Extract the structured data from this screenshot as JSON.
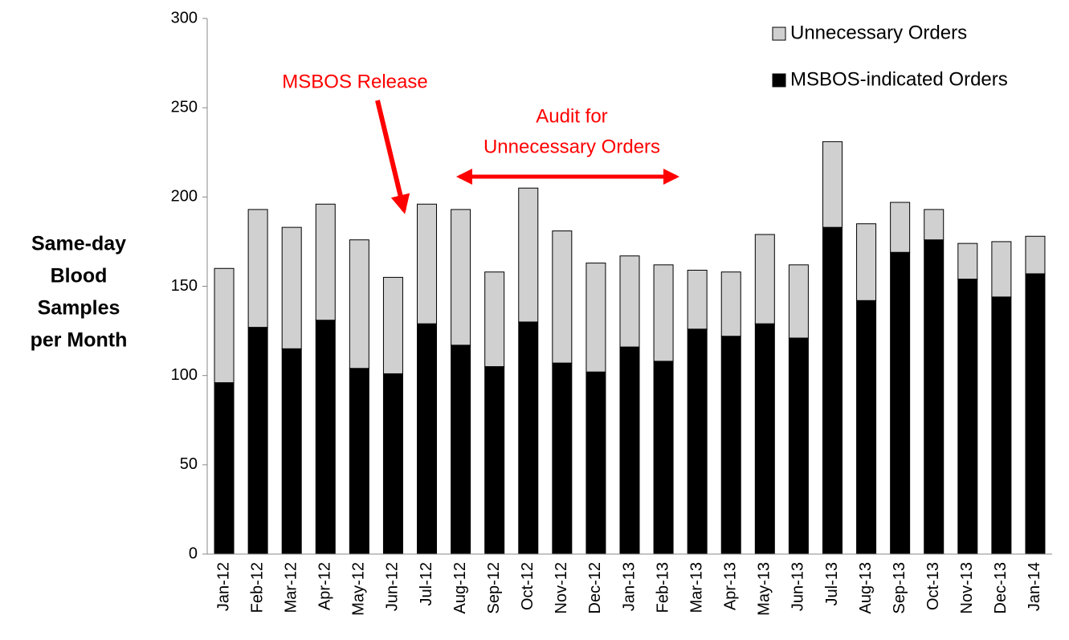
{
  "chart_data": {
    "type": "stacked_bar",
    "ylabel": [
      "Same-day",
      "Blood",
      "Samples",
      "per Month"
    ],
    "categories": [
      "Jan-12",
      "Feb-12",
      "Mar-12",
      "Apr-12",
      "May-12",
      "Jun-12",
      "Jul-12",
      "Aug-12",
      "Sep-12",
      "Oct-12",
      "Nov-12",
      "Dec-12",
      "Jan-13",
      "Feb-13",
      "Mar-13",
      "Apr-13",
      "May-13",
      "Jun-13",
      "Jul-13",
      "Aug-13",
      "Sep-13",
      "Oct-13",
      "Nov-13",
      "Dec-13",
      "Jan-14"
    ],
    "series": [
      {
        "name": "MSBOS-indicated Orders",
        "color": "#000000",
        "values": [
          96,
          127,
          115,
          131,
          104,
          101,
          129,
          117,
          105,
          130,
          107,
          102,
          116,
          108,
          126,
          122,
          129,
          121,
          183,
          142,
          169,
          176,
          154,
          144,
          157
        ]
      },
      {
        "name": "Unnecessary Orders",
        "color": "#d0d0d0",
        "values": [
          64,
          66,
          68,
          65,
          72,
          54,
          67,
          76,
          53,
          75,
          74,
          61,
          51,
          54,
          33,
          36,
          50,
          41,
          48,
          43,
          28,
          17,
          20,
          31,
          21
        ]
      }
    ],
    "ylim": [
      0,
      300
    ],
    "yticks": [
      0,
      50,
      100,
      150,
      200,
      250,
      300
    ],
    "grid": false,
    "legend": "upper right",
    "annotations": [
      {
        "text": [
          "MSBOS Release"
        ]
      },
      {
        "text": [
          "Audit for",
          "Unnecessary Orders"
        ]
      }
    ]
  }
}
